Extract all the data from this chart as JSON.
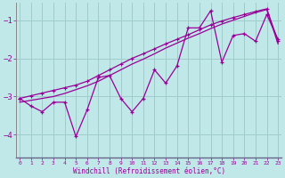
{
  "background_color": "#c0e8e8",
  "grid_color": "#a0cccc",
  "line_color": "#990099",
  "spine_color": "#666688",
  "x_values": [
    0,
    1,
    2,
    3,
    4,
    5,
    6,
    7,
    8,
    9,
    10,
    11,
    12,
    13,
    14,
    15,
    16,
    17,
    18,
    19,
    20,
    21,
    22,
    23
  ],
  "y_main": [
    -3.05,
    -3.25,
    -3.4,
    -3.15,
    -3.15,
    -4.05,
    -3.35,
    -2.5,
    -2.45,
    -3.05,
    -3.4,
    -3.05,
    -2.3,
    -2.65,
    -2.2,
    -1.2,
    -1.2,
    -0.75,
    -2.1,
    -1.4,
    -1.35,
    -1.55,
    -0.85,
    -1.5
  ],
  "y_trend_upper": [
    -3.05,
    -2.98,
    -2.91,
    -2.84,
    -2.77,
    -2.7,
    -2.6,
    -2.45,
    -2.3,
    -2.15,
    -2.0,
    -1.88,
    -1.75,
    -1.62,
    -1.5,
    -1.38,
    -1.25,
    -1.12,
    -1.02,
    -0.93,
    -0.85,
    -0.77,
    -0.7,
    -1.55
  ],
  "y_trend_lower": [
    -3.15,
    -3.1,
    -3.05,
    -3.0,
    -2.92,
    -2.82,
    -2.72,
    -2.6,
    -2.45,
    -2.3,
    -2.15,
    -2.02,
    -1.88,
    -1.73,
    -1.6,
    -1.47,
    -1.35,
    -1.22,
    -1.1,
    -1.0,
    -0.9,
    -0.8,
    -0.72,
    -1.62
  ],
  "xlabel": "Windchill (Refroidissement éolien,°C)",
  "yticks": [
    -1,
    -2,
    -3,
    -4
  ],
  "xticks": [
    0,
    1,
    2,
    3,
    4,
    5,
    6,
    7,
    8,
    9,
    10,
    11,
    12,
    13,
    14,
    15,
    16,
    17,
    18,
    19,
    20,
    21,
    22,
    23
  ],
  "xlim": [
    -0.3,
    23.3
  ],
  "ylim": [
    -4.6,
    -0.55
  ]
}
